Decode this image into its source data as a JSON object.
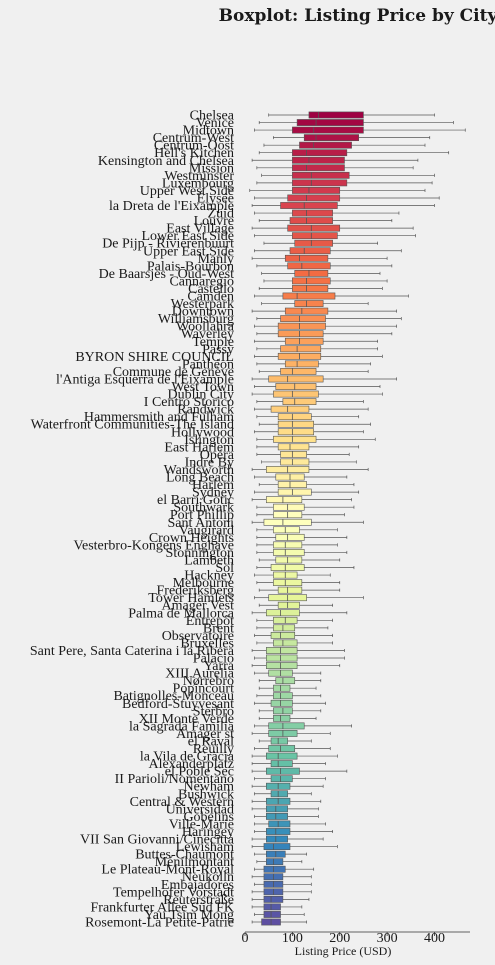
{
  "chart_data": {
    "type": "boxplot",
    "title": "Boxplot: Listing Price by City",
    "xlabel": "Listing Price (USD)",
    "ylabel": "",
    "xlim": [
      0,
      475
    ],
    "xticks": [
      0,
      100,
      200,
      300,
      400
    ],
    "grid": false,
    "categories": [
      "Chelsea",
      "Venice",
      "Midtown",
      "Centrum-West",
      "Centrum-Oost",
      "Hell's Kitchen",
      "Kensington and Chelsea",
      "Mission",
      "Westminster",
      "Luxembourg",
      "Upper West Side",
      "Élysée",
      "la Dreta de l'Eixample",
      "Zuid",
      "Louvre",
      "East Village",
      "Lower East Side",
      "De Pijp - Rivierenbuurt",
      "Upper East Side",
      "Manly",
      "Palais-Bourbon",
      "De Baarsjes - Oud-West",
      "Cannaregio",
      "Castello",
      "Camden",
      "Westerpark",
      "Downtown",
      "Williamsburg",
      "Woollahra",
      "Waverley",
      "Temple",
      "Passy",
      "BYRON SHIRE COUNCIL",
      "Panthéon",
      "Commune de Genève",
      "l'Antiga Esquerra de l'Eixample",
      "West Town",
      "Dublin City",
      "I Centro Storico",
      "Randwick",
      "Hammersmith and Fulham",
      "Waterfront Communities-The Island",
      "Hollywood",
      "Islington",
      "East Harlem",
      "Opéra",
      "Indre By",
      "Wandsworth",
      "Long Beach",
      "Harlem",
      "Sydney",
      "el Barri Gòtic",
      "Southwark",
      "Port Phillip",
      "Sant Antoni",
      "Vaugirard",
      "Crown Heights",
      "Vesterbro-Kongens Enghave",
      "Stonnington",
      "Lambeth",
      "Sol",
      "Hackney",
      "Melbourne",
      "Frederiksberg",
      "Tower Hamlets",
      "Amager Vest",
      "Palma de Mallorca",
      "Entrepôt",
      "Brent",
      "Observatoire",
      "Bruxelles",
      "Sant Pere, Santa Caterina i la Ribera",
      "Palacio",
      "Yarra",
      "XIII Aurelia",
      "Nørrebro",
      "Popincourt",
      "Batignolles-Monceau",
      "Bedford-Stuyvesant",
      "Sterbro",
      "XII Monte Verde",
      "la Sagrada Família",
      "Amager st",
      "el Raval",
      "Reuilly",
      "la Vila de Gràcia",
      "Alexanderplatz",
      "el Poble Sec",
      "II Parioli/Nomentano",
      "Newham",
      "Bushwick",
      "Central & Western",
      "Universidad",
      "Gobelins",
      "Ville-Marie",
      "Haringey",
      "VII San Giovanni/Cinecittà",
      "Lewisham",
      "Buttes-Chaumont",
      "Ménilmontant",
      "Le Plateau-Mont-Royal",
      "Neukölln",
      "Embajadores",
      "Tempelhofer Vorstadt",
      "Reuterstraße",
      "Frankfurter Allee Süd FK",
      "Yau Tsim Mong",
      "Rosemont-La Petite-Patrie"
    ],
    "series": [
      {
        "stats": [
          [
            50,
            135,
            155,
            250,
            400
          ],
          [
            30,
            110,
            150,
            250,
            440
          ],
          [
            20,
            100,
            145,
            250,
            465
          ],
          [
            60,
            125,
            150,
            240,
            390
          ],
          [
            40,
            115,
            145,
            225,
            380
          ],
          [
            30,
            100,
            130,
            215,
            430
          ],
          [
            15,
            100,
            135,
            210,
            365
          ],
          [
            25,
            100,
            130,
            210,
            355
          ],
          [
            35,
            100,
            140,
            220,
            400
          ],
          [
            25,
            100,
            140,
            215,
            395
          ],
          [
            10,
            100,
            135,
            200,
            380
          ],
          [
            20,
            90,
            130,
            200,
            410
          ],
          [
            15,
            75,
            125,
            195,
            400
          ],
          [
            20,
            100,
            130,
            185,
            325
          ],
          [
            30,
            95,
            130,
            185,
            310
          ],
          [
            15,
            90,
            140,
            200,
            355
          ],
          [
            20,
            100,
            140,
            195,
            360
          ],
          [
            40,
            105,
            140,
            185,
            280
          ],
          [
            20,
            95,
            125,
            180,
            330
          ],
          [
            15,
            85,
            115,
            175,
            300
          ],
          [
            25,
            90,
            120,
            180,
            310
          ],
          [
            35,
            105,
            135,
            175,
            285
          ],
          [
            40,
            100,
            130,
            180,
            300
          ],
          [
            30,
            100,
            130,
            175,
            290
          ],
          [
            20,
            80,
            110,
            190,
            345
          ],
          [
            35,
            105,
            130,
            165,
            260
          ],
          [
            15,
            85,
            120,
            175,
            320
          ],
          [
            25,
            75,
            115,
            170,
            330
          ],
          [
            20,
            70,
            115,
            170,
            320
          ],
          [
            25,
            70,
            115,
            165,
            310
          ],
          [
            20,
            85,
            115,
            165,
            280
          ],
          [
            25,
            75,
            110,
            160,
            280
          ],
          [
            20,
            70,
            115,
            160,
            290
          ],
          [
            25,
            85,
            110,
            155,
            265
          ],
          [
            30,
            75,
            100,
            150,
            260
          ],
          [
            15,
            50,
            90,
            165,
            320
          ],
          [
            20,
            65,
            105,
            150,
            285
          ],
          [
            15,
            60,
            100,
            155,
            290
          ],
          [
            25,
            80,
            105,
            150,
            250
          ],
          [
            20,
            55,
            90,
            135,
            260
          ],
          [
            25,
            70,
            100,
            140,
            240
          ],
          [
            30,
            70,
            100,
            145,
            265
          ],
          [
            20,
            70,
            100,
            145,
            250
          ],
          [
            25,
            60,
            100,
            150,
            275
          ],
          [
            25,
            70,
            95,
            135,
            240
          ],
          [
            25,
            75,
            100,
            130,
            220
          ],
          [
            35,
            75,
            100,
            135,
            235
          ],
          [
            15,
            45,
            90,
            135,
            260
          ],
          [
            20,
            65,
            95,
            125,
            215
          ],
          [
            30,
            70,
            95,
            130,
            230
          ],
          [
            20,
            70,
            100,
            140,
            240
          ],
          [
            15,
            45,
            80,
            120,
            225
          ],
          [
            25,
            60,
            90,
            125,
            230
          ],
          [
            25,
            60,
            90,
            120,
            210
          ],
          [
            15,
            40,
            80,
            140,
            250
          ],
          [
            25,
            60,
            85,
            115,
            195
          ],
          [
            25,
            65,
            90,
            125,
            215
          ],
          [
            25,
            60,
            85,
            120,
            195
          ],
          [
            25,
            60,
            85,
            125,
            215
          ],
          [
            30,
            65,
            90,
            120,
            200
          ],
          [
            25,
            55,
            85,
            125,
            230
          ],
          [
            20,
            60,
            85,
            110,
            180
          ],
          [
            25,
            60,
            85,
            120,
            200
          ],
          [
            30,
            70,
            90,
            120,
            200
          ],
          [
            20,
            50,
            90,
            130,
            250
          ],
          [
            30,
            70,
            90,
            115,
            185
          ],
          [
            15,
            45,
            75,
            115,
            215
          ],
          [
            25,
            60,
            85,
            110,
            185
          ],
          [
            25,
            60,
            80,
            105,
            175
          ],
          [
            20,
            55,
            75,
            105,
            185
          ],
          [
            25,
            60,
            80,
            110,
            185
          ],
          [
            15,
            45,
            75,
            110,
            210
          ],
          [
            20,
            45,
            75,
            110,
            210
          ],
          [
            15,
            45,
            75,
            110,
            200
          ],
          [
            20,
            50,
            75,
            100,
            160
          ],
          [
            30,
            65,
            80,
            105,
            160
          ],
          [
            30,
            60,
            75,
            95,
            150
          ],
          [
            25,
            60,
            75,
            100,
            160
          ],
          [
            20,
            55,
            75,
            100,
            170
          ],
          [
            30,
            60,
            80,
            100,
            160
          ],
          [
            30,
            60,
            75,
            95,
            150
          ],
          [
            20,
            50,
            80,
            125,
            225
          ],
          [
            15,
            50,
            80,
            110,
            180
          ],
          [
            30,
            55,
            70,
            90,
            140
          ],
          [
            20,
            50,
            75,
            105,
            180
          ],
          [
            15,
            45,
            70,
            110,
            195
          ],
          [
            15,
            55,
            70,
            100,
            170
          ],
          [
            15,
            45,
            75,
            115,
            215
          ],
          [
            20,
            55,
            75,
            100,
            170
          ],
          [
            15,
            45,
            70,
            95,
            165
          ],
          [
            20,
            55,
            70,
            90,
            140
          ],
          [
            15,
            45,
            70,
            95,
            160
          ],
          [
            15,
            45,
            65,
            90,
            155
          ],
          [
            20,
            45,
            65,
            90,
            155
          ],
          [
            20,
            50,
            70,
            95,
            170
          ],
          [
            20,
            45,
            65,
            95,
            185
          ],
          [
            15,
            45,
            65,
            90,
            165
          ],
          [
            15,
            40,
            60,
            95,
            195
          ],
          [
            20,
            45,
            65,
            85,
            130
          ],
          [
            25,
            45,
            60,
            80,
            120
          ],
          [
            20,
            40,
            60,
            85,
            145
          ],
          [
            15,
            40,
            60,
            80,
            140
          ],
          [
            20,
            40,
            60,
            80,
            140
          ],
          [
            15,
            40,
            60,
            80,
            140
          ],
          [
            15,
            40,
            55,
            80,
            135
          ],
          [
            15,
            40,
            55,
            75,
            120
          ],
          [
            20,
            40,
            55,
            75,
            125
          ],
          [
            15,
            35,
            55,
            75,
            130
          ]
        ]
      }
    ],
    "colors": [
      "#9e0142",
      "#d53e4f",
      "#f46d43",
      "#fdae61",
      "#fee08b",
      "#ffffbf",
      "#e6f598",
      "#abdda4",
      "#66c2a5",
      "#3288bd",
      "#5e4fa2"
    ]
  }
}
